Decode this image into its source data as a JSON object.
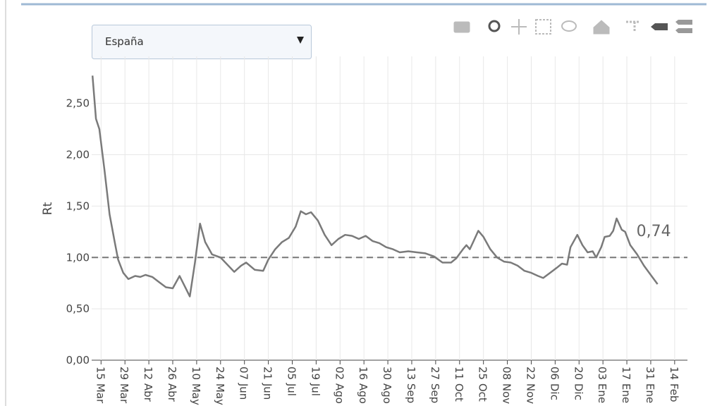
{
  "chart_data": {
    "type": "line",
    "dropdown": "España",
    "y_label": "Rt",
    "annotation": "0,74",
    "reference_line": 1,
    "grid": true,
    "color": "#7a7a7a",
    "xlim": [
      -5.5,
      343.5
    ],
    "ylim": [
      0,
      2.82
    ],
    "yticks": [
      {
        "value": 0,
        "label": "0,00"
      },
      {
        "value": 0.5,
        "label": "0,50"
      },
      {
        "value": 1,
        "label": "1,00"
      },
      {
        "value": 1.5,
        "label": "1,50"
      },
      {
        "value": 2,
        "label": "2,00"
      },
      {
        "value": 2.5,
        "label": "2,50"
      }
    ],
    "xticks": [
      {
        "value": 0,
        "label": "15 Mar"
      },
      {
        "value": 14,
        "label": "29 Mar"
      },
      {
        "value": 28,
        "label": "12 Abr"
      },
      {
        "value": 42,
        "label": "26 Abr"
      },
      {
        "value": 56,
        "label": "10 May"
      },
      {
        "value": 70,
        "label": "24 May"
      },
      {
        "value": 84,
        "label": "07 Jun"
      },
      {
        "value": 98,
        "label": "21 Jun"
      },
      {
        "value": 112,
        "label": "05 Jul"
      },
      {
        "value": 126,
        "label": "19 Jul"
      },
      {
        "value": 140,
        "label": "02 Ago"
      },
      {
        "value": 154,
        "label": "16 Ago"
      },
      {
        "value": 168,
        "label": "30 Ago"
      },
      {
        "value": 182,
        "label": "13 Sep"
      },
      {
        "value": 196,
        "label": "27 Sep"
      },
      {
        "value": 210,
        "label": "11 Oct"
      },
      {
        "value": 224,
        "label": "25 Oct"
      },
      {
        "value": 238,
        "label": "08 Nov"
      },
      {
        "value": 252,
        "label": "22 Nov"
      },
      {
        "value": 266,
        "label": "06 Dic"
      },
      {
        "value": 280,
        "label": "20 Dic"
      },
      {
        "value": 294,
        "label": "03 Ene"
      },
      {
        "value": 308,
        "label": "17 Ene"
      },
      {
        "value": 322,
        "label": "31 Ene"
      },
      {
        "value": 336,
        "label": "14 Feb"
      }
    ],
    "x": [
      -5,
      -3,
      -1,
      2,
      5,
      8,
      10,
      13,
      16,
      20,
      23,
      26,
      30,
      34,
      38,
      42,
      46,
      49,
      52,
      55,
      58,
      61,
      65,
      70,
      74,
      78,
      82,
      85,
      90,
      95,
      98,
      102,
      106,
      110,
      114,
      117,
      120,
      123,
      127,
      131,
      135,
      139,
      143,
      147,
      151,
      155,
      159,
      163,
      167,
      171,
      175,
      180,
      185,
      190,
      195,
      200,
      205,
      208,
      212,
      214,
      216,
      218,
      221,
      224,
      228,
      232,
      236,
      240,
      244,
      248,
      252,
      256,
      259,
      263,
      267,
      270,
      273,
      275,
      279,
      282,
      285,
      288,
      290,
      293,
      295,
      298,
      300,
      302,
      305,
      307,
      310,
      314,
      318,
      322,
      326
    ],
    "values": [
      2.77,
      2.35,
      2.25,
      1.85,
      1.42,
      1.15,
      0.98,
      0.85,
      0.79,
      0.82,
      0.81,
      0.83,
      0.81,
      0.76,
      0.71,
      0.7,
      0.82,
      0.72,
      0.62,
      0.95,
      1.33,
      1.15,
      1.03,
      1.0,
      0.93,
      0.86,
      0.92,
      0.95,
      0.88,
      0.87,
      0.98,
      1.08,
      1.15,
      1.19,
      1.3,
      1.45,
      1.42,
      1.44,
      1.36,
      1.22,
      1.12,
      1.18,
      1.22,
      1.21,
      1.18,
      1.21,
      1.16,
      1.14,
      1.1,
      1.08,
      1.05,
      1.06,
      1.05,
      1.04,
      1.01,
      0.95,
      0.95,
      0.99,
      1.08,
      1.12,
      1.08,
      1.15,
      1.26,
      1.2,
      1.08,
      1.0,
      0.96,
      0.95,
      0.92,
      0.87,
      0.85,
      0.82,
      0.8,
      0.85,
      0.9,
      0.94,
      0.93,
      1.1,
      1.22,
      1.12,
      1.05,
      1.06,
      1.0,
      1.1,
      1.2,
      1.21,
      1.26,
      1.38,
      1.27,
      1.25,
      1.12,
      1.03,
      0.92,
      0.83,
      0.74
    ]
  }
}
